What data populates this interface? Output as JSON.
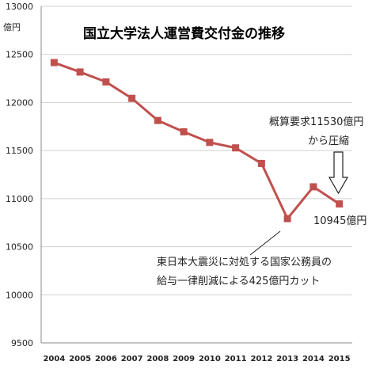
{
  "chart_data": {
    "type": "line",
    "title": "国立大学法人運営費交付金の推移",
    "unit_label": "億円",
    "ylim": [
      9500,
      13000
    ],
    "yticks": [
      9500,
      10000,
      10500,
      11000,
      11500,
      12000,
      12500,
      13000
    ],
    "categories": [
      "2004",
      "2005",
      "2006",
      "2007",
      "2008",
      "2009",
      "2010",
      "2011",
      "2012",
      "2013",
      "2014",
      "2015"
    ],
    "series": [
      {
        "values": [
          12415,
          12317,
          12214,
          12043,
          11813,
          11695,
          11585,
          11528,
          11366,
          10792,
          11123,
          10945
        ],
        "color": "#c0504d"
      }
    ],
    "grid": true,
    "annotations": {
      "request_line1": "概算要求11530億円",
      "request_line2": "から圧縮",
      "final_value": "10945億円",
      "quake_line1": "東日本大震災に対処する国家公務員の",
      "quake_line2": "給与一律削減による425億円カット"
    }
  }
}
